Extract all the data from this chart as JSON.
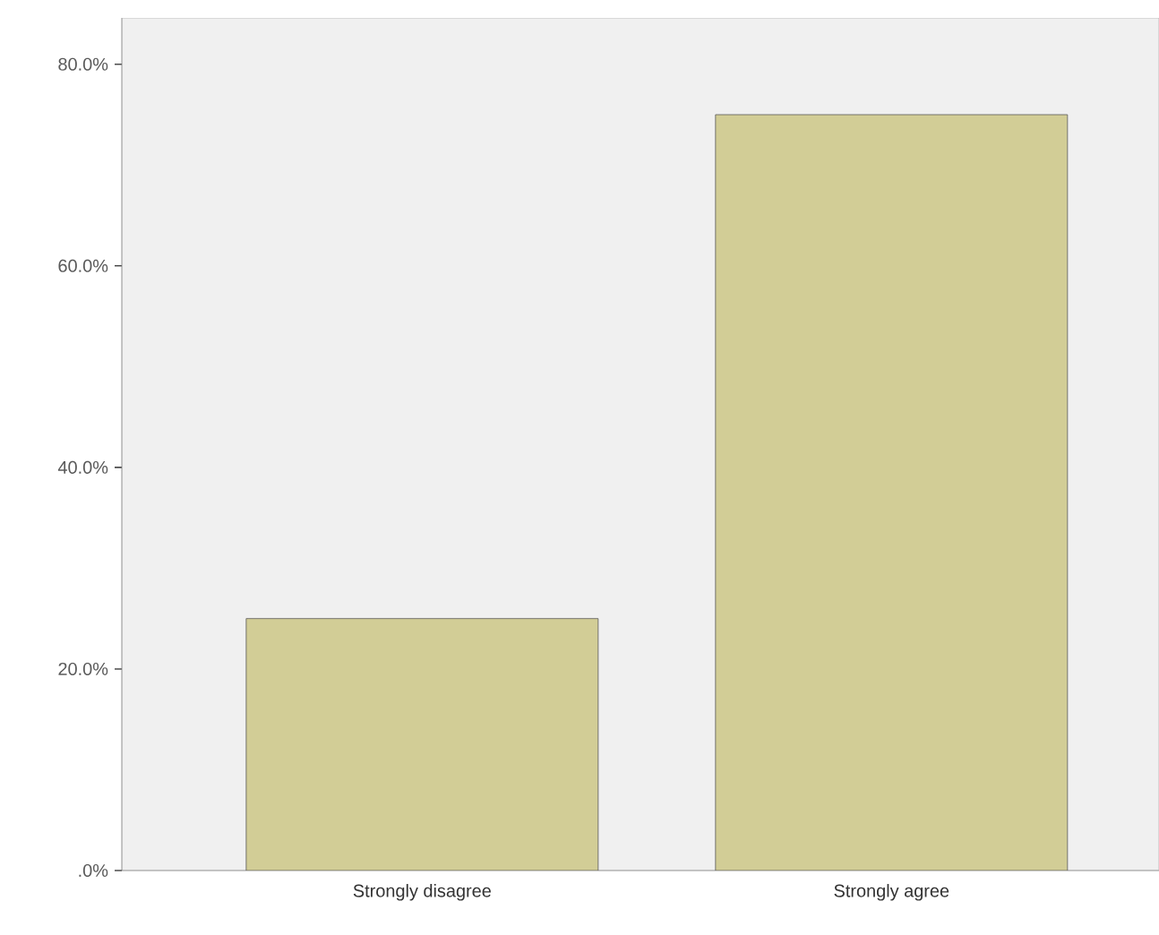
{
  "chart_data": {
    "type": "bar",
    "categories": [
      "Strongly disagree",
      "Strongly agree"
    ],
    "values": [
      25,
      75
    ],
    "color": "#d2cd96",
    "ylim": [
      0,
      84.6
    ],
    "yticks": [
      {
        "value": 0,
        "label": ".0%"
      },
      {
        "value": 20,
        "label": "20.0%"
      },
      {
        "value": 40,
        "label": "40.0%"
      },
      {
        "value": 60,
        "label": "60.0%"
      },
      {
        "value": 80,
        "label": "80.0%"
      }
    ],
    "grid": false
  }
}
